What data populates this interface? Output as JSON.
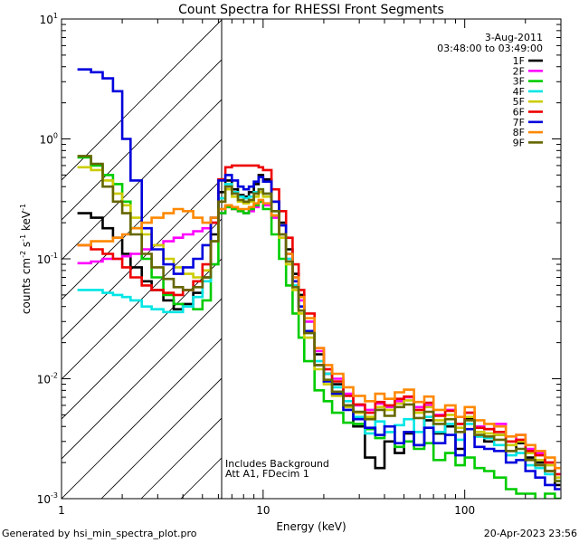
{
  "chart_data": {
    "type": "line",
    "title": "Count Spectra for RHESSI Front Segments",
    "xlabel": "Energy (keV)",
    "ylabel_parts": {
      "p1": "counts cm",
      "e1": "-2",
      "p2": " s",
      "e2": "-1",
      "p3": " keV",
      "e3": "-1"
    },
    "x_scale": "log",
    "y_scale": "log",
    "xlim": [
      1,
      300
    ],
    "ylim": [
      0.001,
      10
    ],
    "x_ticks": [
      {
        "value": 1,
        "label": "1"
      },
      {
        "value": 10,
        "label": "10"
      },
      {
        "value": 100,
        "label": "100"
      }
    ],
    "y_ticks": [
      {
        "value": 10,
        "base": "10",
        "exp": "1"
      },
      {
        "value": 1,
        "base": "10",
        "exp": "0"
      },
      {
        "value": 0.1,
        "base": "10",
        "exp": "-1"
      },
      {
        "value": 0.01,
        "base": "10",
        "exp": "-2"
      },
      {
        "value": 0.001,
        "base": "10",
        "exp": "-3"
      }
    ],
    "date": "3-Aug-2011",
    "time_range": "03:48:00 to 03:49:00",
    "note_background": "Includes Background",
    "note_attenuator": "Att A1, FDecim 1",
    "shaded_region_upper_kev": 6,
    "series": [
      {
        "name": "1F",
        "color": "#000000",
        "x": [
          1.2,
          1.4,
          1.6,
          1.8,
          2.0,
          2.2,
          2.5,
          2.8,
          3.2,
          3.6,
          4.0,
          4.5,
          5.0,
          5.5,
          6.0,
          6.5,
          7.0,
          7.5,
          8.0,
          8.5,
          9.0,
          9.5,
          10,
          11,
          12,
          13,
          14,
          15,
          16,
          18,
          20,
          22,
          25,
          28,
          32,
          36,
          40,
          45,
          50,
          56,
          63,
          70,
          80,
          90,
          100,
          112,
          125,
          140,
          160,
          180,
          200,
          224,
          250,
          280
        ],
        "y": [
          0.24,
          0.22,
          0.18,
          0.15,
          0.11,
          0.085,
          0.065,
          0.055,
          0.045,
          0.038,
          0.042,
          0.052,
          0.07,
          0.16,
          0.36,
          0.45,
          0.38,
          0.34,
          0.33,
          0.36,
          0.42,
          0.5,
          0.46,
          0.3,
          0.2,
          0.12,
          0.075,
          0.05,
          0.03,
          0.016,
          0.011,
          0.009,
          0.006,
          0.004,
          0.0022,
          0.0018,
          0.003,
          0.0024,
          0.0035,
          0.0028,
          0.0045,
          0.0035,
          0.004,
          0.0026,
          0.0046,
          0.0033,
          0.003,
          0.0034,
          0.0025,
          0.0029,
          0.0022,
          0.002,
          0.0017,
          0.0013
        ]
      },
      {
        "name": "2F",
        "color": "#ff00ff",
        "x": [
          1.2,
          1.4,
          1.6,
          1.8,
          2.0,
          2.2,
          2.5,
          2.8,
          3.2,
          3.6,
          4.0,
          4.5,
          5.0,
          5.5,
          6.0,
          6.5,
          7.0,
          7.5,
          8.0,
          8.5,
          9.0,
          9.5,
          10,
          11,
          12,
          13,
          14,
          15,
          16,
          18,
          20,
          22,
          25,
          28,
          32,
          36,
          40,
          45,
          50,
          56,
          63,
          70,
          80,
          90,
          100,
          112,
          125,
          140,
          160,
          180,
          200,
          224,
          250,
          280
        ],
        "y": [
          0.092,
          0.095,
          0.1,
          0.1,
          0.105,
          0.11,
          0.12,
          0.13,
          0.14,
          0.15,
          0.16,
          0.17,
          0.18,
          0.2,
          0.24,
          0.27,
          0.26,
          0.25,
          0.24,
          0.25,
          0.27,
          0.3,
          0.28,
          0.22,
          0.15,
          0.1,
          0.07,
          0.045,
          0.03,
          0.017,
          0.012,
          0.01,
          0.0075,
          0.006,
          0.0055,
          0.0062,
          0.0058,
          0.0065,
          0.007,
          0.0058,
          0.006,
          0.005,
          0.0055,
          0.0042,
          0.0052,
          0.004,
          0.0038,
          0.0042,
          0.003,
          0.0034,
          0.0026,
          0.0024,
          0.002,
          0.0016
        ]
      },
      {
        "name": "3F",
        "color": "#00cc00",
        "x": [
          1.2,
          1.4,
          1.6,
          1.8,
          2.0,
          2.2,
          2.5,
          2.8,
          3.2,
          3.6,
          4.0,
          4.5,
          5.0,
          5.5,
          6.0,
          6.5,
          7.0,
          7.5,
          8.0,
          8.5,
          9.0,
          9.5,
          10,
          11,
          12,
          13,
          14,
          15,
          16,
          18,
          20,
          22,
          25,
          28,
          32,
          36,
          40,
          45,
          50,
          56,
          63,
          70,
          80,
          90,
          100,
          112,
          125,
          140,
          160,
          180,
          200,
          224,
          250,
          280
        ],
        "y": [
          0.7,
          0.6,
          0.5,
          0.42,
          0.3,
          0.18,
          0.1,
          0.07,
          0.05,
          0.042,
          0.04,
          0.038,
          0.045,
          0.09,
          0.24,
          0.27,
          0.26,
          0.25,
          0.24,
          0.26,
          0.28,
          0.3,
          0.26,
          0.16,
          0.1,
          0.06,
          0.035,
          0.022,
          0.014,
          0.008,
          0.0065,
          0.0052,
          0.0043,
          0.0042,
          0.0038,
          0.0032,
          0.0036,
          0.0027,
          0.003,
          0.0026,
          0.0029,
          0.0021,
          0.0024,
          0.0019,
          0.0022,
          0.0018,
          0.0017,
          0.0015,
          0.0012,
          0.0011,
          0.0011,
          0.0009,
          0.0011,
          0.001
        ]
      },
      {
        "name": "4F",
        "color": "#00e5e5",
        "x": [
          1.2,
          1.4,
          1.6,
          1.8,
          2.0,
          2.2,
          2.5,
          2.8,
          3.2,
          3.6,
          4.0,
          4.5,
          5.0,
          5.5,
          6.0,
          6.5,
          7.0,
          7.5,
          8.0,
          8.5,
          9.0,
          9.5,
          10,
          11,
          12,
          13,
          14,
          15,
          16,
          18,
          20,
          22,
          25,
          28,
          32,
          36,
          40,
          45,
          50,
          56,
          63,
          70,
          80,
          90,
          100,
          112,
          125,
          140,
          160,
          180,
          200,
          224,
          250,
          280
        ],
        "y": [
          0.055,
          0.055,
          0.052,
          0.05,
          0.048,
          0.045,
          0.04,
          0.038,
          0.036,
          0.036,
          0.04,
          0.048,
          0.065,
          0.14,
          0.32,
          0.42,
          0.36,
          0.33,
          0.32,
          0.33,
          0.36,
          0.38,
          0.35,
          0.25,
          0.16,
          0.1,
          0.06,
          0.04,
          0.025,
          0.014,
          0.011,
          0.0085,
          0.0065,
          0.0048,
          0.0035,
          0.0044,
          0.0036,
          0.0041,
          0.0046,
          0.0036,
          0.0048,
          0.0036,
          0.0042,
          0.0031,
          0.0042,
          0.0033,
          0.0032,
          0.0028,
          0.0023,
          0.0024,
          0.0019,
          0.0018,
          0.0016,
          0.0014
        ]
      },
      {
        "name": "5F",
        "color": "#cccc00",
        "x": [
          1.2,
          1.4,
          1.6,
          1.8,
          2.0,
          2.2,
          2.5,
          2.8,
          3.2,
          3.6,
          4.0,
          4.5,
          5.0,
          5.5,
          6.0,
          6.5,
          7.0,
          7.5,
          8.0,
          8.5,
          9.0,
          9.5,
          10,
          11,
          12,
          13,
          14,
          15,
          16,
          18,
          20,
          22,
          25,
          28,
          32,
          36,
          40,
          45,
          50,
          56,
          63,
          70,
          80,
          90,
          100,
          112,
          125,
          140,
          160,
          180,
          200,
          224,
          250,
          280
        ],
        "y": [
          0.58,
          0.55,
          0.45,
          0.35,
          0.28,
          0.22,
          0.16,
          0.13,
          0.1,
          0.085,
          0.075,
          0.07,
          0.08,
          0.14,
          0.3,
          0.38,
          0.33,
          0.3,
          0.29,
          0.3,
          0.33,
          0.36,
          0.33,
          0.23,
          0.15,
          0.09,
          0.055,
          0.035,
          0.022,
          0.012,
          0.009,
          0.0072,
          0.0058,
          0.0052,
          0.0048,
          0.0058,
          0.0055,
          0.0062,
          0.0066,
          0.0052,
          0.0058,
          0.0045,
          0.005,
          0.0039,
          0.0048,
          0.0036,
          0.0035,
          0.0034,
          0.0028,
          0.003,
          0.0024,
          0.0021,
          0.0019,
          0.0015
        ]
      },
      {
        "name": "6F",
        "color": "#ee0000",
        "x": [
          1.2,
          1.4,
          1.6,
          1.8,
          2.0,
          2.2,
          2.5,
          2.8,
          3.2,
          3.6,
          4.0,
          4.5,
          5.0,
          5.5,
          6.0,
          6.5,
          7.0,
          7.5,
          8.0,
          8.5,
          9.0,
          9.5,
          10,
          11,
          12,
          13,
          14,
          15,
          16,
          18,
          20,
          22,
          25,
          28,
          32,
          36,
          40,
          45,
          50,
          56,
          63,
          70,
          80,
          90,
          100,
          112,
          125,
          140,
          160,
          180,
          200,
          224,
          250,
          280
        ],
        "y": [
          0.13,
          0.12,
          0.11,
          0.1,
          0.085,
          0.07,
          0.06,
          0.055,
          0.052,
          0.05,
          0.055,
          0.065,
          0.09,
          0.2,
          0.46,
          0.58,
          0.6,
          0.6,
          0.6,
          0.6,
          0.6,
          0.58,
          0.55,
          0.38,
          0.25,
          0.15,
          0.09,
          0.055,
          0.035,
          0.018,
          0.012,
          0.0095,
          0.0072,
          0.0061,
          0.0052,
          0.0064,
          0.006,
          0.0068,
          0.0071,
          0.0055,
          0.0063,
          0.0049,
          0.0054,
          0.0042,
          0.0052,
          0.0039,
          0.0038,
          0.0036,
          0.003,
          0.0031,
          0.0025,
          0.0023,
          0.002,
          0.0016
        ]
      },
      {
        "name": "7F",
        "color": "#0000dd",
        "x": [
          1.2,
          1.4,
          1.6,
          1.8,
          2.0,
          2.2,
          2.5,
          2.8,
          3.2,
          3.6,
          4.0,
          4.5,
          5.0,
          5.5,
          6.0,
          6.5,
          7.0,
          7.5,
          8.0,
          8.5,
          9.0,
          9.5,
          10,
          11,
          12,
          13,
          14,
          15,
          16,
          18,
          20,
          22,
          25,
          28,
          32,
          36,
          40,
          45,
          50,
          56,
          63,
          70,
          80,
          90,
          100,
          112,
          125,
          140,
          160,
          180,
          200,
          224,
          250,
          280
        ],
        "y": [
          3.8,
          3.6,
          3.2,
          2.5,
          1.0,
          0.45,
          0.18,
          0.12,
          0.09,
          0.075,
          0.085,
          0.1,
          0.13,
          0.22,
          0.45,
          0.5,
          0.45,
          0.4,
          0.38,
          0.4,
          0.44,
          0.48,
          0.44,
          0.3,
          0.19,
          0.11,
          0.065,
          0.04,
          0.025,
          0.013,
          0.0095,
          0.0075,
          0.0055,
          0.0046,
          0.0039,
          0.0034,
          0.004,
          0.0029,
          0.0036,
          0.0028,
          0.0039,
          0.0029,
          0.0034,
          0.0023,
          0.0038,
          0.0027,
          0.0026,
          0.0025,
          0.002,
          0.0021,
          0.0017,
          0.0015,
          0.0013,
          0.0012
        ]
      },
      {
        "name": "8F",
        "color": "#ff8800",
        "x": [
          1.2,
          1.4,
          1.6,
          1.8,
          2.0,
          2.2,
          2.5,
          2.8,
          3.2,
          3.6,
          4.0,
          4.5,
          5.0,
          5.5,
          6.0,
          6.5,
          7.0,
          7.5,
          8.0,
          8.5,
          9.0,
          9.5,
          10,
          11,
          12,
          13,
          14,
          15,
          16,
          18,
          20,
          22,
          25,
          28,
          32,
          36,
          40,
          45,
          50,
          56,
          63,
          70,
          80,
          90,
          100,
          112,
          125,
          140,
          160,
          180,
          200,
          224,
          250,
          280
        ],
        "y": [
          0.13,
          0.14,
          0.14,
          0.15,
          0.16,
          0.18,
          0.2,
          0.22,
          0.24,
          0.26,
          0.25,
          0.22,
          0.2,
          0.22,
          0.26,
          0.28,
          0.27,
          0.26,
          0.26,
          0.27,
          0.29,
          0.31,
          0.29,
          0.23,
          0.16,
          0.11,
          0.07,
          0.048,
          0.032,
          0.018,
          0.013,
          0.011,
          0.0085,
          0.0072,
          0.0065,
          0.0075,
          0.0068,
          0.0077,
          0.0081,
          0.0064,
          0.0071,
          0.0055,
          0.006,
          0.0048,
          0.0058,
          0.0045,
          0.0042,
          0.004,
          0.0033,
          0.0034,
          0.0028,
          0.0025,
          0.0022,
          0.0018
        ]
      },
      {
        "name": "9F",
        "color": "#666600",
        "x": [
          1.2,
          1.4,
          1.6,
          1.8,
          2.0,
          2.2,
          2.5,
          2.8,
          3.2,
          3.6,
          4.0,
          4.5,
          5.0,
          5.5,
          6.0,
          6.5,
          7.0,
          7.5,
          8.0,
          8.5,
          9.0,
          9.5,
          10,
          11,
          12,
          13,
          14,
          15,
          16,
          18,
          20,
          22,
          25,
          28,
          32,
          36,
          40,
          45,
          50,
          56,
          63,
          70,
          80,
          90,
          100,
          112,
          125,
          140,
          160,
          180,
          200,
          224,
          250,
          280
        ],
        "y": [
          0.72,
          0.62,
          0.4,
          0.3,
          0.24,
          0.16,
          0.11,
          0.085,
          0.068,
          0.058,
          0.055,
          0.058,
          0.07,
          0.14,
          0.3,
          0.4,
          0.35,
          0.31,
          0.3,
          0.31,
          0.35,
          0.38,
          0.35,
          0.25,
          0.16,
          0.095,
          0.058,
          0.037,
          0.024,
          0.013,
          0.0098,
          0.0078,
          0.006,
          0.0053,
          0.0046,
          0.0055,
          0.0049,
          0.0058,
          0.0061,
          0.0047,
          0.0053,
          0.0042,
          0.0046,
          0.0036,
          0.0045,
          0.0034,
          0.0033,
          0.0031,
          0.0025,
          0.0026,
          0.0021,
          0.0019,
          0.0017,
          0.0014
        ]
      }
    ]
  },
  "footer": {
    "left": "Generated by hsi_min_spectra_plot.pro",
    "right": "20-Apr-2023 23:56"
  }
}
